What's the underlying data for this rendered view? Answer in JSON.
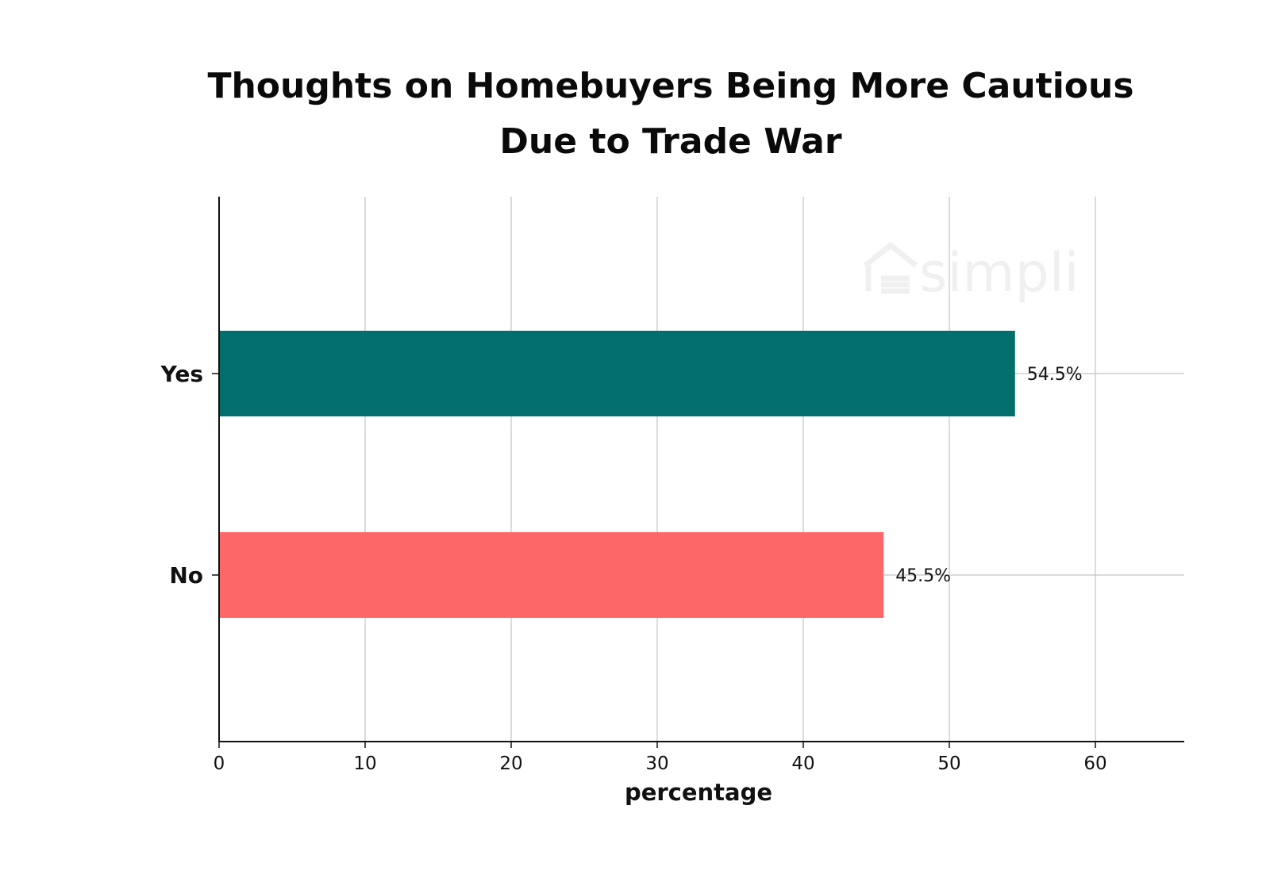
{
  "chart_data": {
    "type": "bar",
    "orientation": "horizontal",
    "title_lines": [
      "Thoughts on Homebuyers Being More Cautious",
      "Due to Trade War"
    ],
    "categories": [
      "Yes",
      "No"
    ],
    "values": [
      54.5,
      45.5
    ],
    "data_labels": [
      "54.5%",
      "45.5%"
    ],
    "colors": [
      "#036e6e",
      "#fe6767"
    ],
    "xlabel": "percentage",
    "ylabel": "",
    "xlim": [
      0,
      66
    ],
    "xticks": [
      0,
      10,
      20,
      30,
      40,
      50,
      60
    ],
    "grid": true,
    "legend": "none"
  },
  "watermark": {
    "text": "simpli",
    "icon": "house-logo-icon"
  }
}
